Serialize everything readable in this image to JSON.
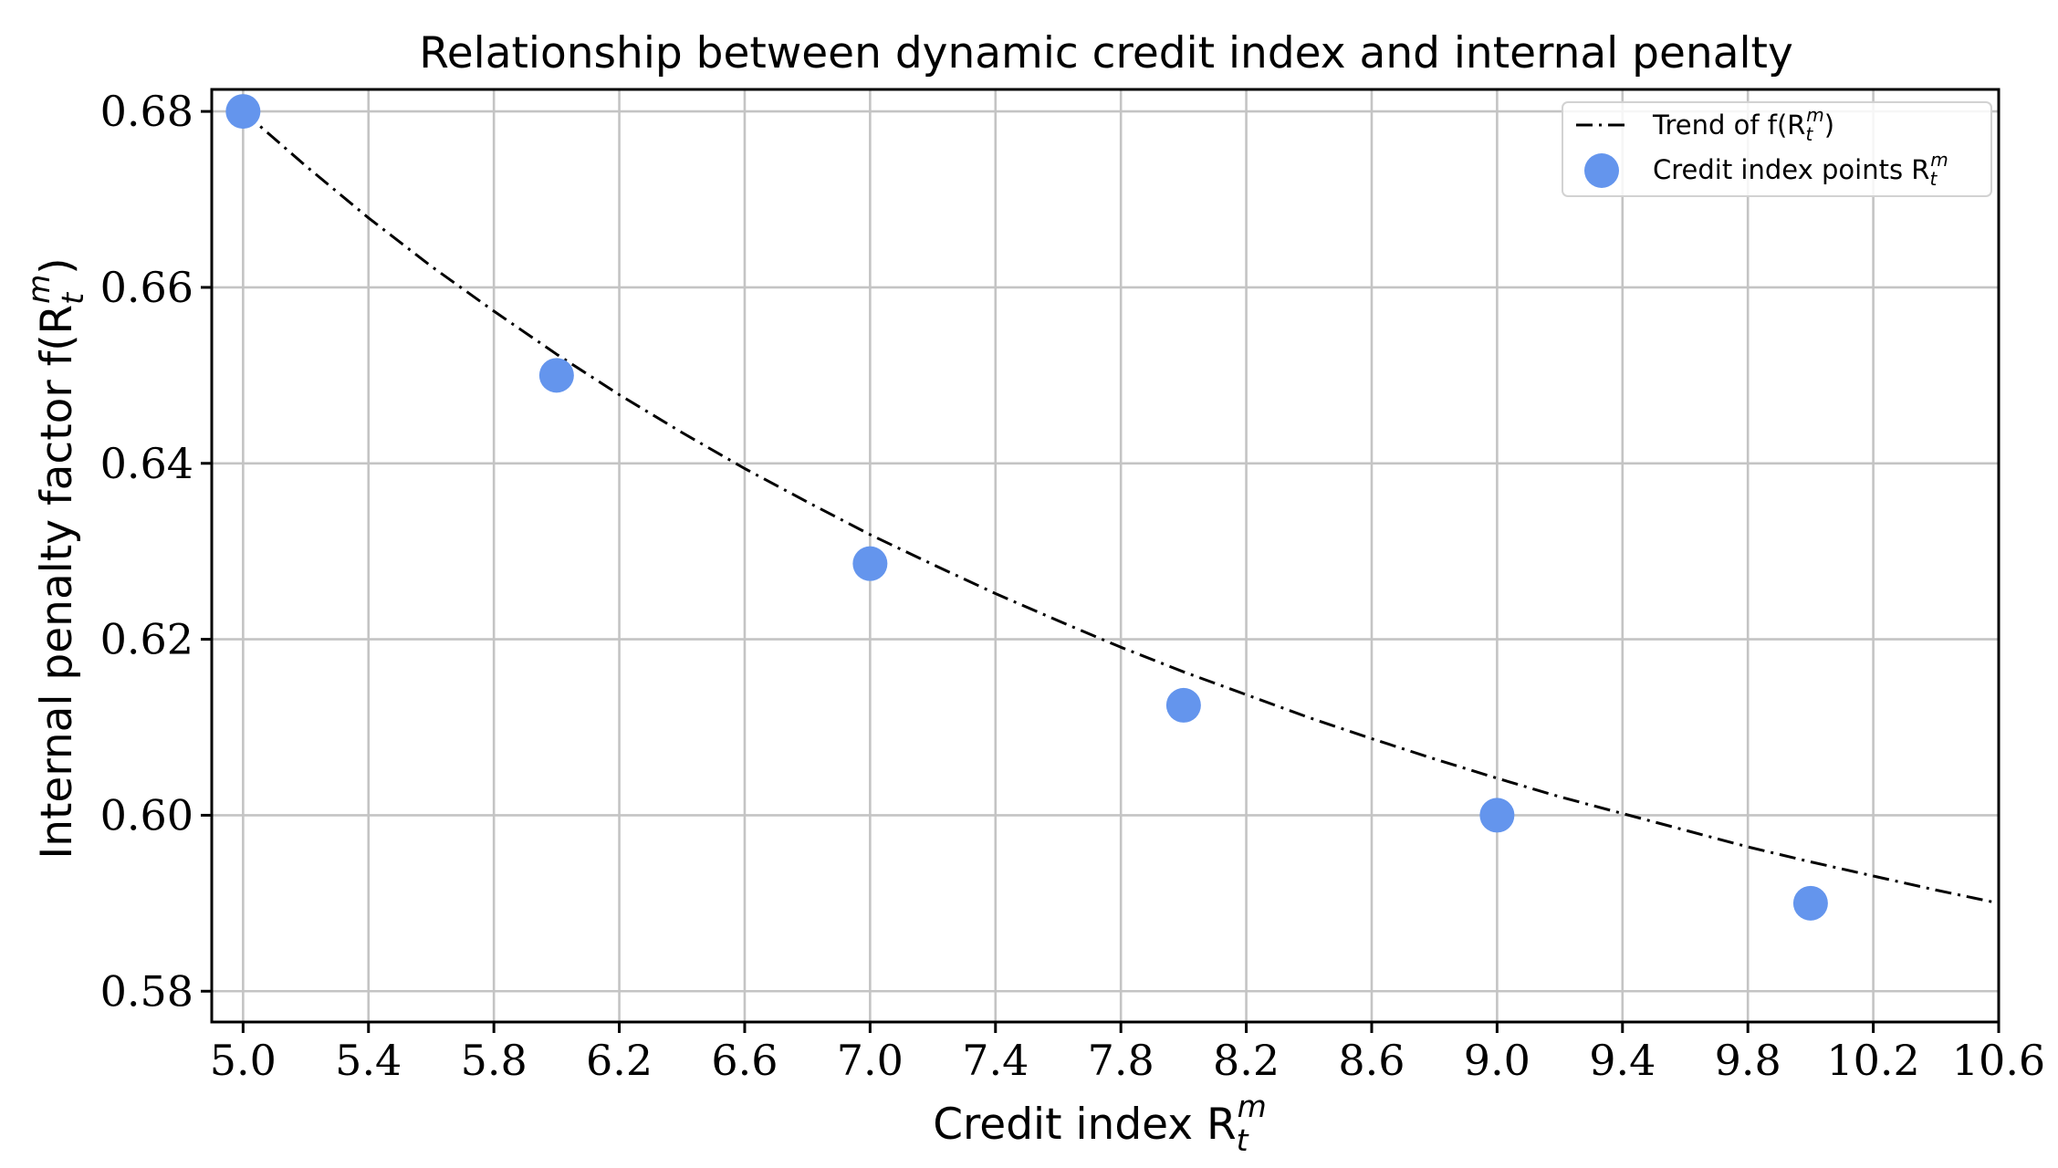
{
  "chart_data": {
    "type": "line",
    "title": "Relationship between dynamic credit index and internal penalty",
    "xlabel": {
      "base": "Credit index R",
      "sub": "t",
      "sup": "m"
    },
    "ylabel": {
      "base": "Internal penalty factor f(R",
      "sub": "t",
      "sup": "m",
      "close": ")"
    },
    "xlim": [
      4.9,
      10.6
    ],
    "ylim": [
      0.5765,
      0.6825
    ],
    "xticks": [
      5.0,
      5.4,
      5.8,
      6.2,
      6.6,
      7.0,
      7.4,
      7.8,
      8.2,
      8.6,
      9.0,
      9.4,
      9.8,
      10.2,
      10.6
    ],
    "yticks": [
      0.58,
      0.6,
      0.62,
      0.64,
      0.66,
      0.68
    ],
    "xtick_labels": [
      "5.0",
      "5.4",
      "5.8",
      "6.2",
      "6.6",
      "7.0",
      "7.4",
      "7.8",
      "8.2",
      "8.6",
      "9.0",
      "9.4",
      "9.8",
      "10.2",
      "10.6"
    ],
    "ytick_labels": [
      "0.58",
      "0.60",
      "0.62",
      "0.64",
      "0.66",
      "0.68"
    ],
    "grid": true,
    "legend_position": "top-right",
    "series": [
      {
        "name": "Trend of f(R_t^m)",
        "legend": {
          "base": "Trend of f(R",
          "sub": "t",
          "sup": "m",
          "close": ")"
        },
        "style": "dash-dot",
        "color": "#000000",
        "x": [
          5.0,
          5.2,
          5.4,
          5.6,
          5.8,
          6.0,
          6.2,
          6.4,
          6.6,
          6.8,
          7.0,
          7.2,
          7.4,
          7.6,
          7.8,
          8.0,
          8.2,
          8.4,
          8.6,
          8.8,
          9.0,
          9.2,
          9.4,
          9.6,
          9.8,
          10.0,
          10.2,
          10.4,
          10.6
        ],
        "y": [
          0.68,
          0.6738,
          0.6679,
          0.6624,
          0.6573,
          0.6524,
          0.6478,
          0.6435,
          0.6394,
          0.6356,
          0.6319,
          0.6285,
          0.6252,
          0.6221,
          0.6191,
          0.6163,
          0.6137,
          0.6111,
          0.6087,
          0.6064,
          0.6042,
          0.6021,
          0.6002,
          0.5983,
          0.5964,
          0.5947,
          0.5931,
          0.5915,
          0.59
        ]
      },
      {
        "name": "Credit index points R_t^m",
        "legend": {
          "base": "Credit index points R",
          "sub": "t",
          "sup": "m",
          "close": ""
        },
        "style": "scatter",
        "color": "#6495ED",
        "x": [
          5.0,
          6.0,
          7.0,
          8.0,
          9.0,
          10.0
        ],
        "y": [
          0.68,
          0.65,
          0.6286,
          0.6125,
          0.6,
          0.59
        ]
      }
    ]
  }
}
